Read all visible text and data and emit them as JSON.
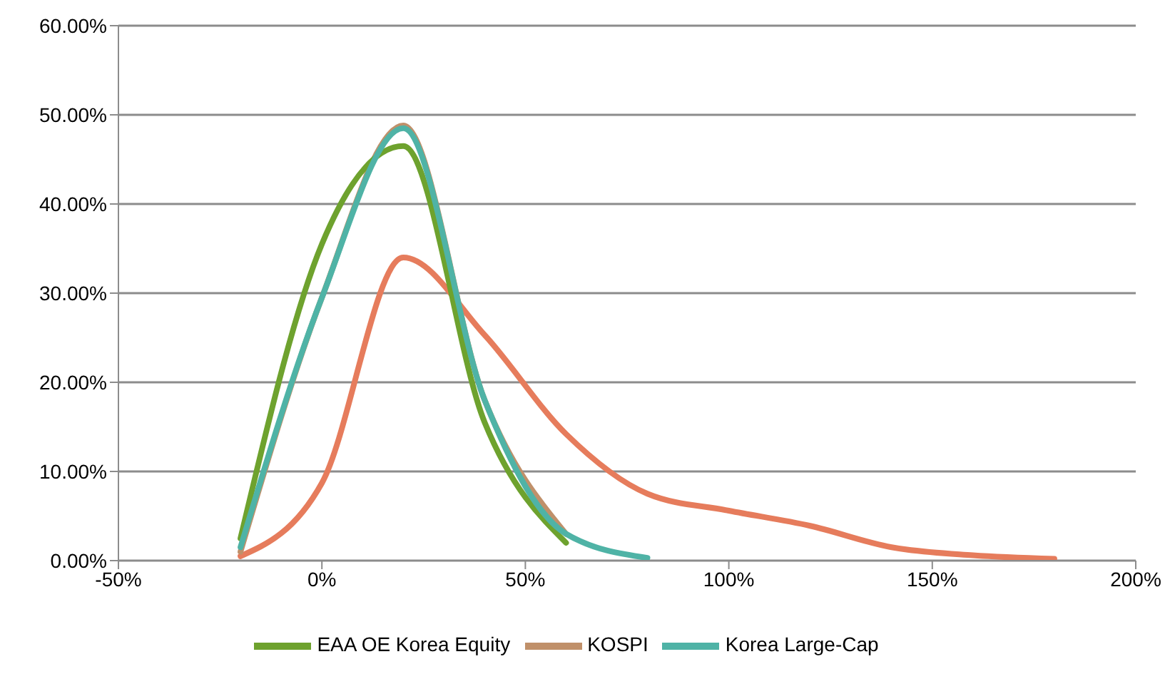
{
  "chart_data": {
    "type": "line",
    "xlim": [
      -50,
      200
    ],
    "xticks": [
      {
        "value": -50,
        "label": "-50%"
      },
      {
        "value": 0,
        "label": "0%"
      },
      {
        "value": 50,
        "label": "50%"
      },
      {
        "value": 100,
        "label": "100%"
      },
      {
        "value": 150,
        "label": "150%"
      },
      {
        "value": 200,
        "label": "200%"
      }
    ],
    "ylim": [
      0,
      60
    ],
    "yticks": [
      {
        "value": 0,
        "label": "0.00%"
      },
      {
        "value": 10,
        "label": "10.00%"
      },
      {
        "value": 20,
        "label": "20.00%"
      },
      {
        "value": 30,
        "label": "30.00%"
      },
      {
        "value": 40,
        "label": "40.00%"
      },
      {
        "value": 50,
        "label": "50.00%"
      },
      {
        "value": 60,
        "label": "60.00%"
      }
    ],
    "grid": "y",
    "legend": "bottom",
    "marker": "none",
    "series": [
      {
        "color": "#e67c5c",
        "x": [
          -20,
          0,
          20,
          40,
          60,
          80,
          100,
          120,
          140,
          160,
          180
        ],
        "values": [
          0.5,
          8.7,
          34,
          25.3,
          14.2,
          7.5,
          5.6,
          3.9,
          1.5,
          0.6,
          0.2
        ]
      },
      {
        "name": "KOSPI",
        "color": "#c0906a",
        "x": [
          -20,
          0,
          20,
          40,
          60
        ],
        "values": [
          1,
          29.5,
          48.8,
          18,
          3
        ]
      },
      {
        "name": "EAA OE Korea Equity",
        "color": "#6ea22e",
        "x": [
          -20,
          0,
          20,
          40,
          60
        ],
        "values": [
          2.5,
          35.5,
          46.5,
          15.5,
          2
        ]
      },
      {
        "name": "Korea Large-Cap",
        "color": "#4fb3a6",
        "x": [
          -20,
          0,
          20,
          40,
          60,
          80
        ],
        "values": [
          1.5,
          29.5,
          48.5,
          18,
          3,
          0.3
        ]
      }
    ]
  }
}
